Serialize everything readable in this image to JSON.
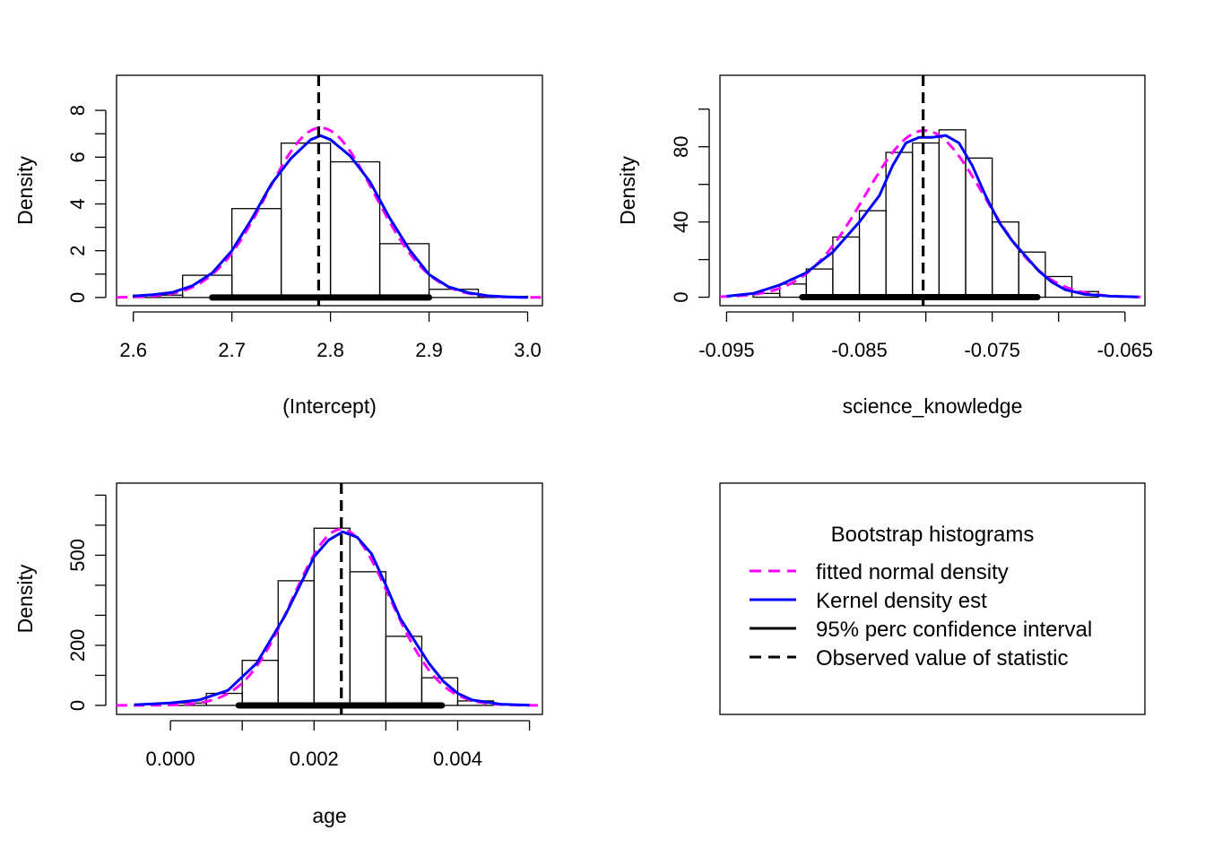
{
  "colors": {
    "normal": "#FF00FF",
    "kernel": "#0000FF",
    "ci": "#000000",
    "observed": "#000000",
    "bars": "#000000"
  },
  "chart_data": [
    {
      "type": "bar",
      "xlabel": "(Intercept)",
      "ylabel": "Density",
      "xlim": [
        2.583,
        3.015
      ],
      "ylim": [
        -0.35,
        9.5
      ],
      "xticks": [
        2.6,
        2.7,
        2.8,
        2.9,
        3.0
      ],
      "xtick_labels": [
        "2.6",
        "2.7",
        "2.8",
        "2.9",
        "3.0"
      ],
      "yticks": [
        0,
        2,
        4,
        6,
        8
      ],
      "ytick_labels": [
        "0",
        "2",
        "4",
        "6",
        "8"
      ],
      "yminor": [
        1,
        3,
        5,
        7
      ],
      "bins": [
        {
          "x0": 2.6,
          "x1": 2.65,
          "density": 0.1
        },
        {
          "x0": 2.65,
          "x1": 2.7,
          "density": 0.95
        },
        {
          "x0": 2.7,
          "x1": 2.75,
          "density": 3.8
        },
        {
          "x0": 2.75,
          "x1": 2.8,
          "density": 6.6
        },
        {
          "x0": 2.8,
          "x1": 2.85,
          "density": 5.8
        },
        {
          "x0": 2.85,
          "x1": 2.9,
          "density": 2.3
        },
        {
          "x0": 2.9,
          "x1": 2.95,
          "density": 0.35
        },
        {
          "x0": 2.95,
          "x1": 3.0,
          "density": 0.05
        }
      ],
      "normal": {
        "mean": 2.79,
        "sd": 0.055
      },
      "kernel": [
        [
          2.6,
          0.06
        ],
        [
          2.62,
          0.12
        ],
        [
          2.64,
          0.22
        ],
        [
          2.66,
          0.5
        ],
        [
          2.68,
          1.05
        ],
        [
          2.7,
          2.0
        ],
        [
          2.72,
          3.35
        ],
        [
          2.74,
          4.85
        ],
        [
          2.76,
          5.95
        ],
        [
          2.78,
          6.75
        ],
        [
          2.79,
          6.92
        ],
        [
          2.8,
          6.75
        ],
        [
          2.82,
          6.05
        ],
        [
          2.84,
          4.95
        ],
        [
          2.86,
          3.4
        ],
        [
          2.88,
          2.05
        ],
        [
          2.9,
          0.98
        ],
        [
          2.92,
          0.45
        ],
        [
          2.94,
          0.2
        ],
        [
          2.96,
          0.07
        ],
        [
          2.98,
          0.02
        ],
        [
          3.0,
          0.0
        ]
      ],
      "ci": [
        2.68,
        2.9
      ],
      "observed": 2.788
    },
    {
      "type": "bar",
      "xlabel": "science_knowledge",
      "ylabel": "Density",
      "xlim": [
        -0.0955,
        -0.0635
      ],
      "ylim": [
        -4.5,
        118
      ],
      "xticks": [
        -0.095,
        -0.085,
        -0.075,
        -0.065
      ],
      "xtick_labels": [
        "-0.095",
        "-0.085",
        "-0.075",
        "-0.065"
      ],
      "xminor": [
        -0.09,
        -0.08,
        -0.07
      ],
      "yticks": [
        0,
        40,
        80
      ],
      "ytick_labels": [
        "0",
        "40",
        "80"
      ],
      "yminor": [
        20,
        60,
        100
      ],
      "bins": [
        {
          "x0": -0.093,
          "x1": -0.091,
          "density": 2
        },
        {
          "x0": -0.091,
          "x1": -0.089,
          "density": 7
        },
        {
          "x0": -0.089,
          "x1": -0.087,
          "density": 15
        },
        {
          "x0": -0.087,
          "x1": -0.085,
          "density": 32
        },
        {
          "x0": -0.085,
          "x1": -0.083,
          "density": 46
        },
        {
          "x0": -0.083,
          "x1": -0.081,
          "density": 77
        },
        {
          "x0": -0.081,
          "x1": -0.079,
          "density": 82
        },
        {
          "x0": -0.079,
          "x1": -0.077,
          "density": 89
        },
        {
          "x0": -0.077,
          "x1": -0.075,
          "density": 74
        },
        {
          "x0": -0.075,
          "x1": -0.073,
          "density": 40
        },
        {
          "x0": -0.073,
          "x1": -0.071,
          "density": 24
        },
        {
          "x0": -0.071,
          "x1": -0.069,
          "density": 11
        },
        {
          "x0": -0.069,
          "x1": -0.067,
          "density": 3
        }
      ],
      "normal": {
        "mean": -0.0801,
        "sd": 0.0045
      },
      "kernel": [
        [
          -0.095,
          0.5
        ],
        [
          -0.093,
          2
        ],
        [
          -0.091,
          6.5
        ],
        [
          -0.089,
          13
        ],
        [
          -0.087,
          24
        ],
        [
          -0.085,
          40
        ],
        [
          -0.0835,
          54
        ],
        [
          -0.0825,
          70
        ],
        [
          -0.0815,
          82
        ],
        [
          -0.0805,
          85
        ],
        [
          -0.0795,
          85
        ],
        [
          -0.0785,
          86
        ],
        [
          -0.0775,
          82
        ],
        [
          -0.0765,
          70
        ],
        [
          -0.0755,
          54
        ],
        [
          -0.0745,
          40
        ],
        [
          -0.0735,
          30
        ],
        [
          -0.0725,
          22
        ],
        [
          -0.0715,
          14
        ],
        [
          -0.0705,
          8
        ],
        [
          -0.0695,
          4
        ],
        [
          -0.068,
          1.5
        ],
        [
          -0.066,
          0.5
        ],
        [
          -0.064,
          0.1
        ]
      ],
      "ci": [
        -0.0893,
        -0.0716
      ],
      "observed": -0.0802
    },
    {
      "type": "bar",
      "xlabel": "age",
      "ylabel": "Density",
      "xlim": [
        -0.00075,
        0.00518
      ],
      "ylim": [
        -30,
        740
      ],
      "xticks": [
        0.0,
        0.002,
        0.004
      ],
      "xtick_labels": [
        "0.000",
        "0.002",
        "0.004"
      ],
      "xminor": [
        0.001,
        0.003,
        0.005
      ],
      "yticks": [
        0,
        200,
        500
      ],
      "ytick_labels": [
        "0",
        "200",
        "500"
      ],
      "yminor": [
        100,
        300,
        400,
        600,
        700
      ],
      "bins": [
        {
          "x0": 0.0,
          "x1": 0.0005,
          "density": 8
        },
        {
          "x0": 0.0005,
          "x1": 0.001,
          "density": 40
        },
        {
          "x0": 0.001,
          "x1": 0.0015,
          "density": 150
        },
        {
          "x0": 0.0015,
          "x1": 0.002,
          "density": 415
        },
        {
          "x0": 0.002,
          "x1": 0.0025,
          "density": 590
        },
        {
          "x0": 0.0025,
          "x1": 0.003,
          "density": 445
        },
        {
          "x0": 0.003,
          "x1": 0.0035,
          "density": 230
        },
        {
          "x0": 0.0035,
          "x1": 0.004,
          "density": 92
        },
        {
          "x0": 0.004,
          "x1": 0.0045,
          "density": 15
        }
      ],
      "normal": {
        "mean": 0.00238,
        "sd": 0.00068
      },
      "kernel": [
        [
          -0.0005,
          2
        ],
        [
          0.0,
          8
        ],
        [
          0.0004,
          18
        ],
        [
          0.0008,
          50
        ],
        [
          0.0012,
          140
        ],
        [
          0.0016,
          300
        ],
        [
          0.002,
          495
        ],
        [
          0.0022,
          550
        ],
        [
          0.0024,
          578
        ],
        [
          0.0026,
          560
        ],
        [
          0.0028,
          505
        ],
        [
          0.003,
          400
        ],
        [
          0.0032,
          290
        ],
        [
          0.0034,
          215
        ],
        [
          0.0036,
          140
        ],
        [
          0.0038,
          80
        ],
        [
          0.004,
          40
        ],
        [
          0.0042,
          18
        ],
        [
          0.0046,
          4
        ],
        [
          0.005,
          0.5
        ]
      ],
      "ci": [
        0.00095,
        0.00378
      ],
      "observed": 0.00238
    }
  ],
  "legend": {
    "title": "Bootstrap histograms",
    "items": [
      {
        "label": "fitted normal density",
        "style": "dashed",
        "color": "#FF00FF"
      },
      {
        "label": "Kernel density est",
        "style": "solid",
        "color": "#0000FF"
      },
      {
        "label": "95% perc confidence interval",
        "style": "solid",
        "color": "#000000"
      },
      {
        "label": "Observed value of statistic",
        "style": "dashed",
        "color": "#000000"
      }
    ]
  }
}
